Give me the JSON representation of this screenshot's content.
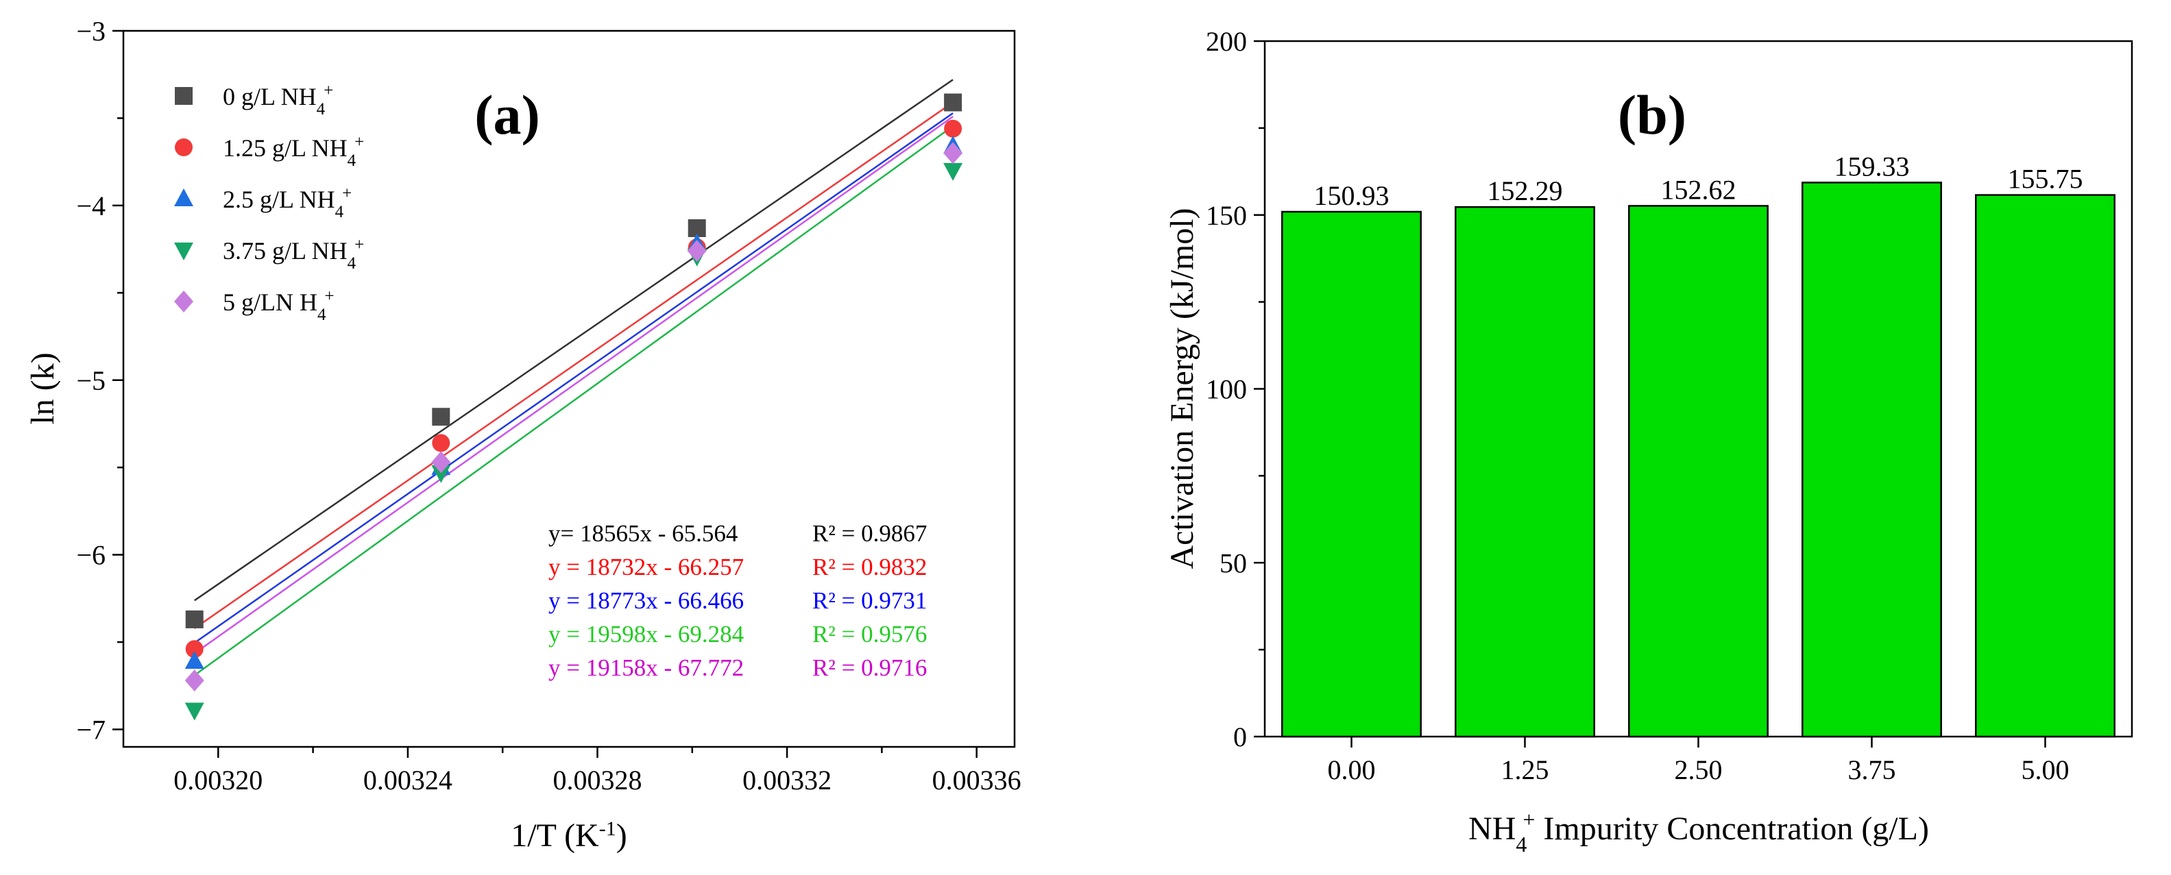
{
  "chart_data": [
    {
      "type": "scatter",
      "panel": "(a)",
      "xlabel": "1/T (K",
      "xlabel_sup": "-1",
      "xlabel_close": ")",
      "ylabel": "ln (k)",
      "xlim": [
        0.00318,
        0.003368
      ],
      "ylim": [
        -7.1,
        -3.0
      ],
      "xticks": [
        0.0032,
        0.00324,
        0.00328,
        0.00332,
        0.00336
      ],
      "xtick_labels": [
        "0.00320",
        "0.00324",
        "0.00328",
        "0.00332",
        "0.00336"
      ],
      "yticks": [
        -7,
        -6,
        -5,
        -4,
        -3
      ],
      "ytick_labels": [
        "−7",
        "−6",
        "−5",
        "−4",
        "−3"
      ],
      "legend_position": "top-left",
      "series": [
        {
          "name": "0 g/L NH4+",
          "legend_prefix": "0 g/L NH",
          "legend_sub": "4",
          "legend_sup": "+",
          "legend_suffix": "",
          "marker": "square",
          "color": "#4d4d4d",
          "line_color": "#333333",
          "x": [
            0.003195,
            0.003247,
            0.003301,
            0.003355
          ],
          "y": [
            -6.37,
            -5.21,
            -4.13,
            -3.41
          ],
          "fit": {
            "slope": 18565,
            "intercept": -65.564
          },
          "equation": "y= 18565x - 65.564",
          "r2": "R² = 0.9867",
          "eq_color": "#000000"
        },
        {
          "name": "1.25 g/L NH4+",
          "legend_prefix": "1.25 g/L NH",
          "legend_sub": "4",
          "legend_sup": "+",
          "legend_suffix": "",
          "marker": "circle",
          "color": "#f23a3a",
          "line_color": "#f23a3a",
          "x": [
            0.003195,
            0.003247,
            0.003301,
            0.003355
          ],
          "y": [
            -6.54,
            -5.36,
            -4.24,
            -3.56
          ],
          "fit": {
            "slope": 18732,
            "intercept": -66.257
          },
          "equation": "y = 18732x - 66.257",
          "r2": "R² = 0.9832",
          "eq_color": "#ff0000"
        },
        {
          "name": "2.5 g/L NH4+",
          "legend_prefix": "2.5 g/L NH",
          "legend_sub": "4",
          "legend_sup": "+",
          "legend_suffix": "",
          "marker": "triangle-up",
          "color": "#1f6fe0",
          "line_color": "#1f3ae0",
          "x": [
            0.003195,
            0.003247,
            0.003301,
            0.003355
          ],
          "y": [
            -6.61,
            -5.5,
            -4.22,
            -3.66
          ],
          "fit": {
            "slope": 18773,
            "intercept": -66.466
          },
          "equation": "y = 18773x - 66.466",
          "r2": "R² = 0.9731",
          "eq_color": "#0000ff"
        },
        {
          "name": "3.75 g/L NH4+",
          "legend_prefix": "3.75 g/L NH",
          "legend_sub": "4",
          "legend_sup": "+",
          "legend_suffix": "",
          "marker": "triangle-down",
          "color": "#17a567",
          "line_color": "#1fb84a",
          "x": [
            0.003195,
            0.003247,
            0.003301,
            0.003355
          ],
          "y": [
            -6.89,
            -5.53,
            -4.29,
            -3.8
          ],
          "fit": {
            "slope": 19598,
            "intercept": -69.284
          },
          "equation": "y = 19598x - 69.284",
          "r2": "R² = 0.9576",
          "eq_color": "#22cc22"
        },
        {
          "name": "5 g/LN H4+",
          "legend_prefix": "5 g/LN H",
          "legend_sub": "4",
          "legend_sup": "+",
          "legend_suffix": "",
          "marker": "diamond",
          "color": "#c77ddf",
          "line_color": "#cc55ee",
          "x": [
            0.003195,
            0.003247,
            0.003301,
            0.003355
          ],
          "y": [
            -6.72,
            -5.47,
            -4.26,
            -3.7
          ],
          "fit": {
            "slope": 19158,
            "intercept": -67.772
          },
          "equation": "y = 19158x - 67.772",
          "r2": "R² = 0.9716",
          "eq_color": "#cc00cc"
        }
      ]
    },
    {
      "type": "bar",
      "panel": "(b)",
      "categories": [
        "0.00",
        "1.25",
        "2.50",
        "3.75",
        "5.00"
      ],
      "values": [
        150.93,
        152.29,
        152.62,
        159.33,
        155.75
      ],
      "value_labels": [
        "150.93",
        "152.29",
        "152.62",
        "159.33",
        "155.75"
      ],
      "bar_color": "#00dd00",
      "ylabel": "Activation Energy (kJ/mol)",
      "xlabel_prefix": "NH",
      "xlabel_sub": "4",
      "xlabel_sup": "+",
      "xlabel_suffix": " Impurity Concentration (g/L)",
      "ylim": [
        0,
        200
      ],
      "yticks": [
        0,
        50,
        100,
        150,
        200
      ],
      "ytick_labels": [
        "0",
        "50",
        "100",
        "150",
        "200"
      ]
    }
  ]
}
